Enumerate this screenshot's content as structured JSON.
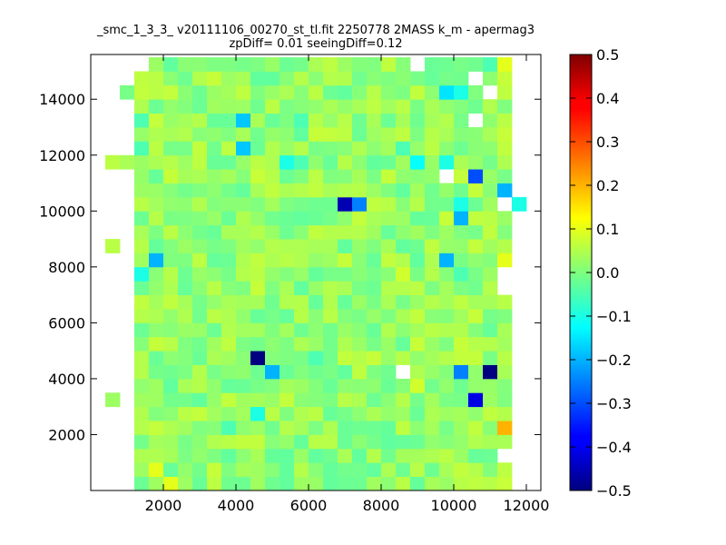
{
  "chart_data": {
    "type": "heatmap",
    "title": "_smc_1_3_3_ v20111106_00270_st_tl.fit 2250778 2MASS k_m - apermag3",
    "subtitle": "zpDiff= 0.01 seeingDiff=0.12",
    "xlabel": "",
    "ylabel": "",
    "xlim": [
      0,
      12400
    ],
    "ylim": [
      0,
      15600
    ],
    "x_ticks": [
      "2000",
      "4000",
      "6000",
      "8000",
      "10000",
      "12000"
    ],
    "x_tick_values": [
      2000,
      4000,
      6000,
      8000,
      10000,
      12000
    ],
    "y_ticks": [
      "2000",
      "4000",
      "6000",
      "8000",
      "10000",
      "12000",
      "14000"
    ],
    "y_tick_values": [
      2000,
      4000,
      6000,
      8000,
      10000,
      12000,
      14000
    ],
    "grid": false,
    "colormap": "jet",
    "colorbar": {
      "range": [
        -0.5,
        0.5
      ],
      "ticks": [
        "0.5",
        "0.4",
        "0.3",
        "0.2",
        "0.1",
        "0.0",
        "−0.1",
        "−0.2",
        "−0.3",
        "−0.4",
        "−0.5"
      ],
      "tick_values": [
        0.5,
        0.4,
        0.3,
        0.2,
        0.1,
        0.0,
        -0.1,
        -0.2,
        -0.3,
        -0.4,
        -0.5
      ]
    },
    "cells": {
      "x_start": 400,
      "y_start": 0,
      "cell_width": 400,
      "cell_height": 500,
      "columns": 29,
      "rows": 31,
      "base_value": 0.02,
      "variation": 0.05,
      "seed": 1106,
      "missing": [
        [
          0,
          0
        ],
        [
          1,
          0
        ],
        [
          0,
          1
        ],
        [
          1,
          1
        ],
        [
          0,
          2
        ],
        [
          1,
          2
        ],
        [
          0,
          3
        ],
        [
          1,
          3
        ],
        [
          0,
          4
        ],
        [
          1,
          4
        ],
        [
          0,
          5
        ],
        [
          1,
          5
        ],
        [
          1,
          6
        ],
        [
          0,
          7
        ],
        [
          1,
          7
        ],
        [
          0,
          8
        ],
        [
          1,
          8
        ],
        [
          0,
          9
        ],
        [
          1,
          9
        ],
        [
          0,
          10
        ],
        [
          1,
          10
        ],
        [
          0,
          11
        ],
        [
          1,
          11
        ],
        [
          0,
          12
        ],
        [
          1,
          12
        ],
        [
          0,
          13
        ],
        [
          1,
          13
        ],
        [
          0,
          14
        ],
        [
          1,
          14
        ],
        [
          0,
          15
        ],
        [
          1,
          15
        ],
        [
          0,
          16
        ],
        [
          1,
          16
        ],
        [
          1,
          17
        ],
        [
          0,
          18
        ],
        [
          1,
          18
        ],
        [
          0,
          19
        ],
        [
          1,
          19
        ],
        [
          0,
          20
        ],
        [
          1,
          20
        ],
        [
          0,
          21
        ],
        [
          1,
          21
        ],
        [
          0,
          22
        ],
        [
          1,
          22
        ],
        [
          0,
          24
        ],
        [
          1,
          24
        ],
        [
          0,
          25
        ],
        [
          1,
          25
        ],
        [
          0,
          26
        ],
        [
          1,
          26
        ],
        [
          0,
          27
        ],
        [
          1,
          27
        ],
        [
          0,
          28
        ],
        [
          0,
          29
        ],
        [
          1,
          29
        ],
        [
          0,
          30
        ],
        [
          1,
          30
        ],
        [
          2,
          30
        ],
        [
          28,
          0
        ],
        [
          28,
          1
        ],
        [
          27,
          2
        ],
        [
          28,
          2
        ],
        [
          28,
          3
        ],
        [
          28,
          4
        ],
        [
          28,
          5
        ],
        [
          28,
          6
        ],
        [
          28,
          7
        ],
        [
          28,
          8
        ],
        [
          28,
          9
        ],
        [
          28,
          10
        ],
        [
          28,
          11
        ],
        [
          28,
          12
        ],
        [
          28,
          13
        ],
        [
          28,
          14
        ],
        [
          28,
          15
        ],
        [
          28,
          16
        ],
        [
          28,
          17
        ],
        [
          28,
          18
        ],
        [
          28,
          19
        ],
        [
          28,
          21
        ],
        [
          28,
          22
        ],
        [
          28,
          23
        ],
        [
          28,
          24
        ],
        [
          28,
          25
        ],
        [
          28,
          26
        ],
        [
          28,
          27
        ],
        [
          28,
          28
        ],
        [
          28,
          29
        ],
        [
          28,
          30
        ],
        [
          21,
          30
        ],
        [
          25,
          29
        ],
        [
          26,
          28
        ],
        [
          25,
          26
        ],
        [
          23,
          22
        ],
        [
          20,
          8
        ],
        [
          27,
          14
        ],
        [
          27,
          15
        ],
        [
          27,
          20
        ]
      ],
      "overrides": [
        [
          2,
          24,
          -0.05
        ],
        [
          9,
          26,
          -0.18
        ],
        [
          16,
          20,
          -0.45
        ],
        [
          17,
          20,
          -0.25
        ],
        [
          12,
          23,
          -0.1
        ],
        [
          13,
          23,
          -0.05
        ],
        [
          21,
          23,
          -0.12
        ],
        [
          3,
          16,
          -0.2
        ],
        [
          2,
          26,
          -0.05
        ],
        [
          2,
          15,
          -0.1
        ],
        [
          20,
          15,
          0.08
        ],
        [
          22,
          15,
          0.05
        ],
        [
          24,
          15,
          -0.05
        ],
        [
          24,
          19,
          -0.2
        ],
        [
          24,
          20,
          -0.1
        ],
        [
          27,
          21,
          -0.2
        ],
        [
          28,
          20,
          -0.1
        ],
        [
          25,
          22,
          -0.3
        ],
        [
          23,
          23,
          -0.1
        ],
        [
          23,
          28,
          -0.15
        ],
        [
          24,
          28,
          -0.1
        ],
        [
          26,
          28,
          -0.2
        ],
        [
          27,
          30,
          0.1
        ],
        [
          26,
          30,
          -0.05
        ],
        [
          9,
          24,
          -0.18
        ],
        [
          13,
          26,
          -0.05
        ],
        [
          20,
          24,
          -0.05
        ],
        [
          10,
          9,
          -0.5
        ],
        [
          11,
          8,
          -0.2
        ],
        [
          26,
          8,
          -0.5
        ],
        [
          25,
          6,
          -0.4
        ],
        [
          28,
          12,
          -0.3
        ],
        [
          24,
          8,
          -0.25
        ],
        [
          27,
          17,
          0.05
        ],
        [
          27,
          16,
          0.1
        ],
        [
          23,
          16,
          -0.2
        ],
        [
          22,
          13,
          0.05
        ],
        [
          20,
          14,
          0.05
        ],
        [
          23,
          9,
          0.05
        ],
        [
          21,
          7,
          0.08
        ],
        [
          10,
          5,
          -0.1
        ],
        [
          3,
          1,
          0.1
        ],
        [
          4,
          0,
          0.1
        ],
        [
          13,
          1,
          0.05
        ],
        [
          27,
          4,
          0.2
        ],
        [
          27,
          5,
          0.05
        ],
        [
          2,
          4,
          0.05
        ],
        [
          2,
          8,
          0.05
        ],
        [
          14,
          9,
          -0.05
        ],
        [
          20,
          6,
          0.05
        ],
        [
          8,
          4,
          -0.05
        ],
        [
          18,
          2,
          0.05
        ]
      ]
    }
  }
}
